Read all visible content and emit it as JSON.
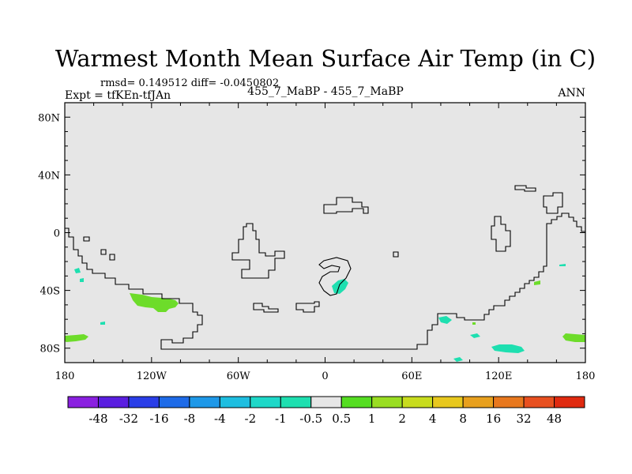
{
  "title": "Warmest Month Mean Surface Air Temp (in C)",
  "stats_line": "rmsd= 0.149512 diff= -0.0450802",
  "expt_label": "Expt = tfKEn-tfJAn",
  "center_label": "455_7_MaBP - 455_7_MaBP",
  "period_label": "ANN",
  "chart_data": {
    "type": "map",
    "projection": "cylindrical-equidistant",
    "background_value_color": "#e6e6e6",
    "y_ticks": [
      {
        "label": "80N",
        "lat": 80
      },
      {
        "label": "40N",
        "lat": 40
      },
      {
        "label": "0",
        "lat": 0
      },
      {
        "label": "40S",
        "lat": -40
      },
      {
        "label": "80S",
        "lat": -80
      }
    ],
    "x_ticks": [
      {
        "label": "180",
        "lon": -180
      },
      {
        "label": "120W",
        "lon": -120
      },
      {
        "label": "60W",
        "lon": -60
      },
      {
        "label": "0",
        "lon": 0
      },
      {
        "label": "60E",
        "lon": 60
      },
      {
        "label": "120E",
        "lon": 120
      },
      {
        "label": "180",
        "lon": 180
      }
    ],
    "xlim": [
      -180,
      180
    ],
    "ylim": [
      -90,
      90
    ],
    "colorbar": {
      "labels": [
        "-48",
        "-32",
        "-16",
        "-8",
        "-4",
        "-2",
        "-1",
        "-0.5",
        "0.5",
        "1",
        "2",
        "4",
        "8",
        "16",
        "32",
        "48"
      ],
      "colors": [
        "#8a20e0",
        "#5a1ee0",
        "#2a3ee8",
        "#1e6be8",
        "#1e98e8",
        "#1ebee0",
        "#1ed8c8",
        "#1edfb0",
        "#e6e6e6",
        "#55dd22",
        "#99dd22",
        "#c8dc1e",
        "#e8c81e",
        "#e8a01e",
        "#e8781e",
        "#e85020",
        "#e02a10"
      ]
    },
    "anomaly_regions": [
      {
        "name": "southeast-pacific-green",
        "category": "1 to 2",
        "color": "#6ddc2a",
        "lon": -120,
        "lat": -47
      },
      {
        "name": "south-pacific-west-green",
        "category": "1 to 2",
        "color": "#6ddc2a",
        "lon": -172,
        "lat": -72
      },
      {
        "name": "south-pacific-east-green",
        "category": "1 to 2",
        "color": "#6ddc2a",
        "lon": 172,
        "lat": -72
      },
      {
        "name": "south-atlantic-teal",
        "category": "-0.5 to -1",
        "color": "#1edfb0",
        "lon": 10,
        "lat": -37
      },
      {
        "name": "southern-ocean-teal",
        "category": "-0.5 to -1",
        "color": "#1edfb0",
        "lon": 128,
        "lat": -81
      },
      {
        "name": "southern-ocean-small-teal",
        "category": "-0.5 to -1",
        "color": "#1edfb0",
        "lon": 83,
        "lat": -61
      },
      {
        "name": "southwest-pacific-green",
        "category": "1 to 2",
        "color": "#6ddc2a",
        "lon": 146,
        "lat": -33
      },
      {
        "name": "central-pacific-teal",
        "category": "-0.5 to -1",
        "color": "#1edfb0",
        "lon": -172,
        "lat": -25
      }
    ]
  }
}
